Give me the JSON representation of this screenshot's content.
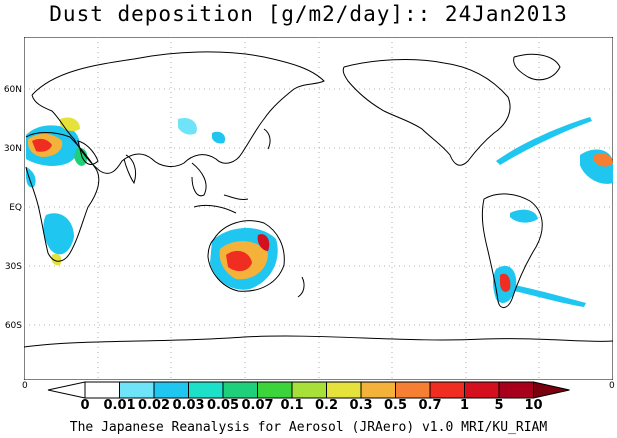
{
  "title": "Dust deposition [g/m2/day]:: 24Jan2013",
  "footer": "The Japanese Reanalysis for Aerosol (JRAero) v1.0 MRI/KU_RIAM",
  "lat_labels": [
    "60N",
    "30N",
    "EQ",
    "30S",
    "60S"
  ],
  "lon_edge_labels": {
    "left": "0",
    "right": "0"
  },
  "colorbar": {
    "labels": [
      "0",
      "0.01",
      "0.02",
      "0.03",
      "0.05",
      "0.07",
      "0.1",
      "0.2",
      "0.3",
      "0.5",
      "0.7",
      "1",
      "5",
      "10"
    ],
    "colors": [
      "#ffffff",
      "#ffffff",
      "#6fe3f8",
      "#1fc6f0",
      "#1ce0c8",
      "#1fd07a",
      "#3bd43b",
      "#a8e03a",
      "#e6e23c",
      "#f5b23a",
      "#f77f33",
      "#ef2d20",
      "#d4101e",
      "#a8001c",
      "#7a0010"
    ]
  },
  "colors": {
    "coast": "#000000",
    "grid": "#9a9a9a"
  }
}
